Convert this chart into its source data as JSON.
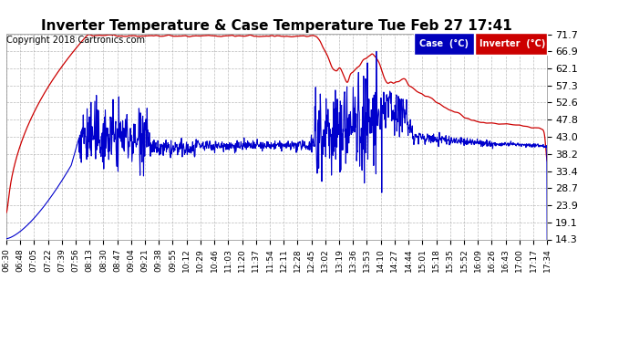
{
  "title": "Inverter Temperature & Case Temperature Tue Feb 27 17:41",
  "copyright": "Copyright 2018 Cartronics.com",
  "background_color": "#ffffff",
  "plot_bg_color": "#ffffff",
  "grid_color": "#aaaaaa",
  "yticks": [
    14.3,
    19.1,
    23.9,
    28.7,
    33.4,
    38.2,
    43.0,
    47.8,
    52.6,
    57.3,
    62.1,
    66.9,
    71.7
  ],
  "ylim": [
    14.3,
    71.7
  ],
  "xtick_labels": [
    "06:30",
    "06:48",
    "07:05",
    "07:22",
    "07:39",
    "07:56",
    "08:13",
    "08:30",
    "08:47",
    "09:04",
    "09:21",
    "09:38",
    "09:55",
    "10:12",
    "10:29",
    "10:46",
    "11:03",
    "11:20",
    "11:37",
    "11:54",
    "12:11",
    "12:28",
    "12:45",
    "13:02",
    "13:19",
    "13:36",
    "13:53",
    "14:10",
    "14:27",
    "14:44",
    "15:01",
    "15:18",
    "15:35",
    "15:52",
    "16:09",
    "16:26",
    "16:43",
    "17:00",
    "17:17",
    "17:34"
  ],
  "legend_case_bg": "#0000bb",
  "legend_inv_bg": "#cc0000",
  "line_red": "#cc0000",
  "line_blue": "#0000cc",
  "title_fontsize": 11,
  "copyright_fontsize": 7,
  "ytick_fontsize": 8,
  "xtick_fontsize": 6.5
}
